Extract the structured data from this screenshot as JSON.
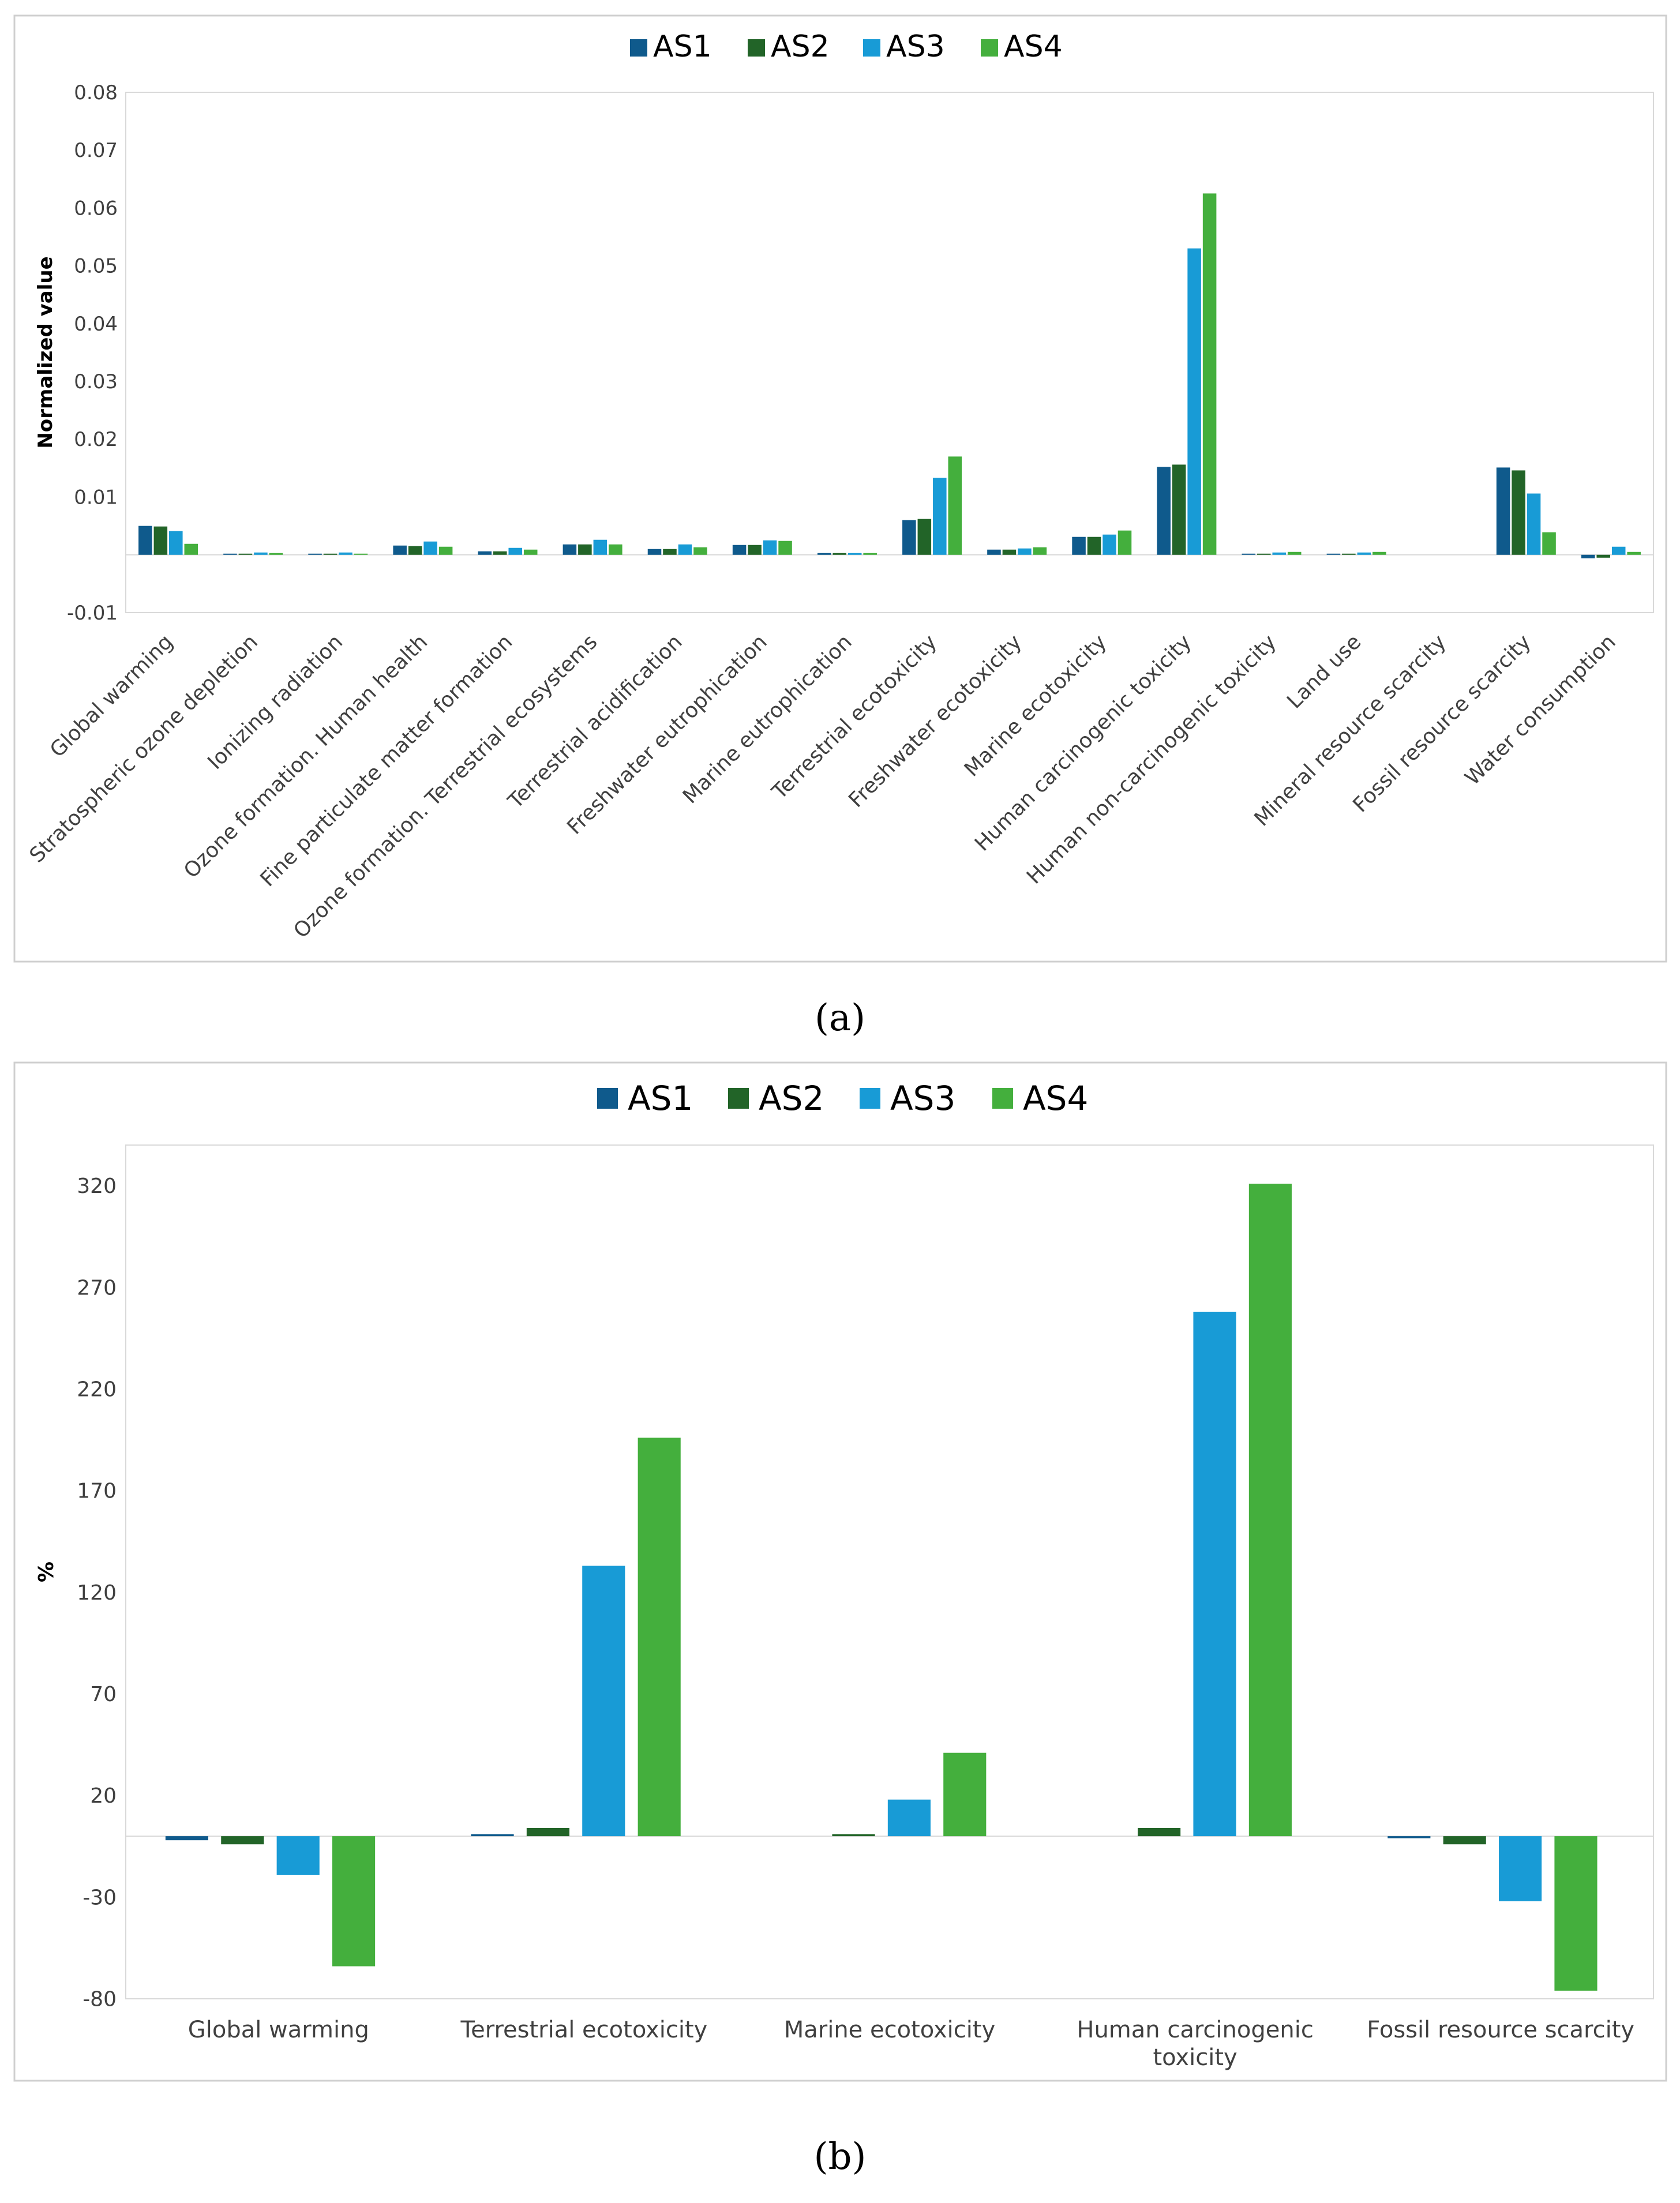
{
  "colors": {
    "AS1": "#0f5a8c",
    "AS2": "#226428",
    "AS3": "#189bd6",
    "AS4": "#44af3d"
  },
  "chart_data": [
    {
      "type": "bar",
      "caption": "(a)",
      "title": "",
      "xlabel": "",
      "ylabel": "Normalized value",
      "ylim": [
        -0.01,
        0.08
      ],
      "yticks": [
        "-0.01",
        "0.01",
        "0.02",
        "0.03",
        "0.04",
        "0.05",
        "0.06",
        "0.07",
        "0.08"
      ],
      "ytick_values": [
        -0.01,
        0.01,
        0.02,
        0.03,
        0.04,
        0.05,
        0.06,
        0.07,
        0.08
      ],
      "categories": [
        "Global warming",
        "Stratospheric ozone depletion",
        "Ionizing radiation",
        "Ozone formation. Human health",
        "Fine particulate matter formation",
        "Ozone formation. Terrestrial ecosystems",
        "Terrestrial acidification",
        "Freshwater eutrophication",
        "Marine eutrophication",
        "Terrestrial ecotoxicity",
        "Freshwater ecotoxicity",
        "Marine ecotoxicity",
        "Human carcinogenic toxicity",
        "Human non-carcinogenic toxicity",
        "Land use",
        "Mineral resource scarcity",
        "Fossil resource scarcity",
        "Water consumption"
      ],
      "series": [
        {
          "name": "AS1",
          "values": [
            0.005,
            0.0002,
            0.0002,
            0.0016,
            0.0006,
            0.0018,
            0.001,
            0.0017,
            0.0003,
            0.006,
            0.0009,
            0.0031,
            0.0152,
            0.0002,
            0.0002,
            0.0,
            0.0151,
            -0.0006
          ]
        },
        {
          "name": "AS2",
          "values": [
            0.0049,
            0.0002,
            0.0002,
            0.0015,
            0.0006,
            0.0018,
            0.001,
            0.0017,
            0.0003,
            0.0062,
            0.0009,
            0.0031,
            0.0156,
            0.0002,
            0.0002,
            0.0,
            0.0146,
            -0.0005
          ]
        },
        {
          "name": "AS3",
          "values": [
            0.0041,
            0.0004,
            0.0004,
            0.0023,
            0.0012,
            0.0026,
            0.0018,
            0.0025,
            0.0003,
            0.0133,
            0.0011,
            0.0035,
            0.053,
            0.0004,
            0.0004,
            0.0,
            0.0106,
            0.0014
          ]
        },
        {
          "name": "AS4",
          "values": [
            0.0019,
            0.0003,
            0.0002,
            0.0014,
            0.0009,
            0.0018,
            0.0013,
            0.0024,
            0.0003,
            0.017,
            0.0013,
            0.0042,
            0.0625,
            0.0005,
            0.0005,
            0.0,
            0.0039,
            0.0005
          ]
        }
      ]
    },
    {
      "type": "bar",
      "caption": "(b)",
      "title": "",
      "xlabel": "",
      "ylabel": "%",
      "ylim": [
        -80,
        340
      ],
      "yticks": [
        "-80",
        "-30",
        "20",
        "70",
        "120",
        "170",
        "220",
        "270",
        "320"
      ],
      "ytick_values": [
        -80,
        -30,
        20,
        70,
        120,
        170,
        220,
        270,
        320
      ],
      "categories": [
        "Global warming",
        "Terrestrial ecotoxicity",
        "Marine ecotoxicity",
        "Human carcinogenic toxicity",
        "Fossil resource scarcity"
      ],
      "category_lines": [
        [
          "Global warming"
        ],
        [
          "Terrestrial ecotoxicity"
        ],
        [
          "Marine ecotoxicity"
        ],
        [
          "Human carcinogenic",
          "toxicity"
        ],
        [
          "Fossil resource scarcity"
        ]
      ],
      "series": [
        {
          "name": "AS1",
          "values": [
            -2,
            1,
            0,
            0,
            -1
          ]
        },
        {
          "name": "AS2",
          "values": [
            -4,
            4,
            1,
            4,
            -4
          ]
        },
        {
          "name": "AS3",
          "values": [
            -19,
            133,
            18,
            258,
            -32
          ]
        },
        {
          "name": "AS4",
          "values": [
            -64,
            196,
            41,
            321,
            -76
          ]
        }
      ]
    }
  ]
}
